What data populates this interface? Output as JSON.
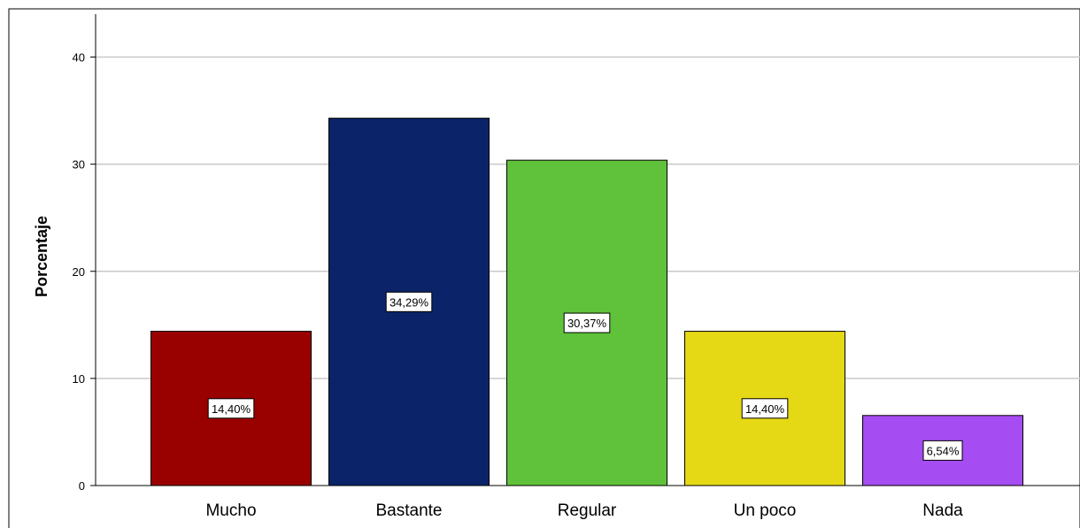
{
  "chart_data": {
    "type": "bar",
    "title": "",
    "xlabel": "",
    "ylabel": "Porcentaje",
    "ylim": [
      0,
      44.5
    ],
    "yticks": [
      0,
      10,
      20,
      30,
      40
    ],
    "grid": true,
    "categories": [
      "Mucho",
      "Bastante",
      "Regular",
      "Un poco",
      "Nada"
    ],
    "values": [
      14.4,
      34.29,
      30.37,
      14.4,
      6.54
    ],
    "data_labels": [
      "14,40%",
      "34,29%",
      "30,37%",
      "14,40%",
      "6,54%"
    ],
    "colors": [
      "#990000",
      "#0b2469",
      "#5fc23a",
      "#e5d815",
      "#a54cf2"
    ]
  }
}
